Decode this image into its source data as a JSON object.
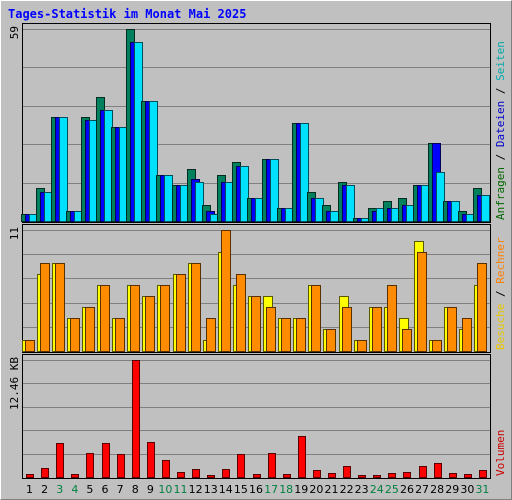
{
  "chart_data": {
    "type": "bar",
    "title": "Tages-Statistik im Monat Mai 2025",
    "categories": [
      "1",
      "2",
      "3",
      "4",
      "5",
      "6",
      "7",
      "8",
      "9",
      "10",
      "11",
      "12",
      "13",
      "14",
      "15",
      "16",
      "17",
      "18",
      "19",
      "20",
      "21",
      "22",
      "23",
      "24",
      "25",
      "26",
      "27",
      "28",
      "29",
      "30",
      "31"
    ],
    "weekend_days": [
      "3",
      "4",
      "10",
      "11",
      "17",
      "18",
      "24",
      "25",
      "31"
    ],
    "panels": [
      {
        "id": "top",
        "ymax_label": "59",
        "ylim": [
          0,
          59
        ],
        "legend": [
          {
            "text": "Anfragen",
            "color": "#006600"
          },
          {
            "text": "Dateien",
            "color": "#0000cc"
          },
          {
            "text": "Seiten",
            "color": "#00aaaa"
          }
        ],
        "series": [
          {
            "name": "Anfragen",
            "color": "#00805c",
            "values": [
              2,
              10,
              32,
              3,
              32,
              38,
              29,
              59,
              37,
              14,
              11,
              16,
              5,
              14,
              18,
              7,
              19,
              4,
              30,
              9,
              5,
              12,
              1,
              4,
              6,
              7,
              11,
              24,
              6,
              3,
              10
            ]
          },
          {
            "name": "Dateien",
            "color": "#0000ff",
            "values": [
              2,
              9,
              32,
              3,
              31,
              34,
              29,
              55,
              37,
              14,
              11,
              13,
              3,
              12,
              17,
              7,
              19,
              4,
              30,
              7,
              3,
              11,
              1,
              3,
              4,
              5,
              11,
              24,
              6,
              2,
              8
            ]
          },
          {
            "name": "Seiten",
            "color": "#00e0ff",
            "values": [
              2,
              9,
              32,
              3,
              31,
              34,
              29,
              55,
              37,
              14,
              11,
              12,
              2,
              12,
              17,
              7,
              19,
              4,
              30,
              7,
              3,
              11,
              1,
              4,
              4,
              5,
              11,
              15,
              6,
              2,
              8
            ]
          }
        ]
      },
      {
        "id": "middle",
        "ymax_label": "11",
        "ylim": [
          0,
          11
        ],
        "legend": [
          {
            "text": "Besuche",
            "color": "#e6c800"
          },
          {
            "text": "Rechner",
            "color": "#ff8000"
          }
        ],
        "series": [
          {
            "name": "Besuche",
            "color": "#ffff00",
            "values": [
              1,
              7,
              8,
              3,
              4,
              6,
              3,
              6,
              5,
              6,
              7,
              8,
              1,
              9,
              6,
              5,
              5,
              3,
              3,
              6,
              2,
              5,
              1,
              4,
              4,
              3,
              10,
              1,
              4,
              2,
              6
            ]
          },
          {
            "name": "Rechner",
            "color": "#ff8c00",
            "values": [
              1,
              8,
              8,
              3,
              4,
              6,
              3,
              6,
              5,
              6,
              7,
              8,
              3,
              11,
              7,
              5,
              4,
              3,
              3,
              6,
              2,
              4,
              1,
              4,
              6,
              2,
              9,
              1,
              4,
              3,
              8
            ]
          }
        ]
      },
      {
        "id": "bottom",
        "ymax_label": "12.46 KB",
        "ylim": [
          0,
          12.46
        ],
        "legend": [
          {
            "text": "Volumen",
            "color": "#cc0000"
          }
        ],
        "series": [
          {
            "name": "Volumen",
            "color": "#ff0000",
            "values": [
              0.3,
              1.0,
              3.6,
              0.3,
              2.6,
              3.6,
              2.4,
              12.46,
              3.7,
              1.8,
              0.5,
              0.9,
              0.2,
              0.9,
              2.5,
              0.3,
              2.6,
              0.3,
              4.4,
              0.7,
              0.4,
              1.2,
              0.2,
              0.2,
              0.4,
              0.5,
              1.2,
              1.5,
              0.4,
              0.3,
              0.7
            ]
          }
        ]
      }
    ],
    "legend_separator": " / ",
    "legend_separator_color": "#000000",
    "weekday_label_color": "#000000",
    "weekend_label_color": "#008040",
    "grid": true
  }
}
